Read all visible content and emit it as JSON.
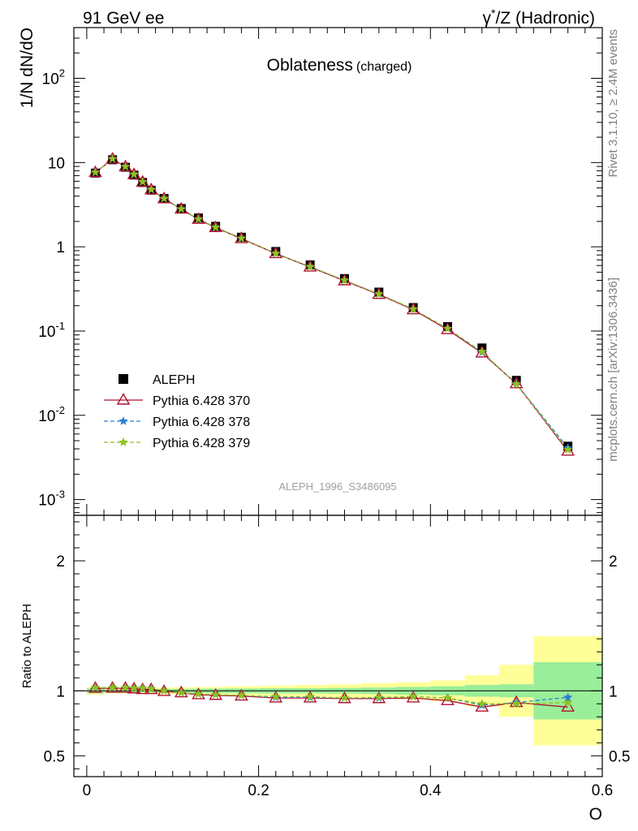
{
  "header": {
    "left": "91 GeV ee",
    "right_prefix": "γ",
    "right_sup": "*",
    "right_rest": "/Z (Hadronic)"
  },
  "side": {
    "rivet": "Rivet 3.1.10, ≥ 2.4M events",
    "mcplots": "mcplots.cern.ch [arXiv:1306.3436]"
  },
  "chart_data": {
    "type": "line",
    "title": "Oblateness",
    "subtitle": "(charged)",
    "analysis_tag": "ALEPH_1996_S3486095",
    "xlabel": "O",
    "ylabel": "1/N dN/dO",
    "ratio_ylabel": "Ratio to ALEPH",
    "xlim": [
      -0.015,
      0.6
    ],
    "ylim": [
      0.00065,
      400
    ],
    "ylog": true,
    "ratio_ylim": [
      0.34,
      2.35
    ],
    "x_ticks": [
      {
        "v": 0,
        "label": "0"
      },
      {
        "v": 0.2,
        "label": "0.2"
      },
      {
        "v": 0.4,
        "label": "0.4"
      },
      {
        "v": 0.6,
        "label": "0.6"
      }
    ],
    "y_ticks": [
      {
        "v": 0.001,
        "base": "10",
        "exp": "-3"
      },
      {
        "v": 0.01,
        "base": "10",
        "exp": "-2"
      },
      {
        "v": 0.1,
        "base": "10",
        "exp": "-1"
      },
      {
        "v": 1,
        "base": "1",
        "exp": ""
      },
      {
        "v": 10,
        "base": "10",
        "exp": ""
      },
      {
        "v": 100,
        "base": "10",
        "exp": "2"
      }
    ],
    "ratio_ticks": [
      {
        "v": 0.5,
        "label": "0.5"
      },
      {
        "v": 1,
        "label": "1"
      },
      {
        "v": 2,
        "label": "2"
      }
    ],
    "legend_position": "lower-left",
    "x": [
      0.01,
      0.03,
      0.045,
      0.055,
      0.065,
      0.075,
      0.09,
      0.11,
      0.13,
      0.15,
      0.18,
      0.22,
      0.26,
      0.3,
      0.34,
      0.38,
      0.42,
      0.46,
      0.5,
      0.56
    ],
    "bin_edges": [
      0.0,
      0.02,
      0.04,
      0.05,
      0.06,
      0.07,
      0.08,
      0.1,
      0.12,
      0.14,
      0.16,
      0.2,
      0.24,
      0.28,
      0.32,
      0.36,
      0.4,
      0.44,
      0.48,
      0.52,
      0.6
    ],
    "band_inner": [
      0.02,
      0.01,
      0.01,
      0.01,
      0.01,
      0.012,
      0.014,
      0.015,
      0.016,
      0.017,
      0.018,
      0.02,
      0.02,
      0.022,
      0.025,
      0.03,
      0.035,
      0.045,
      0.05,
      0.22
    ],
    "band_outer": [
      0.03,
      0.02,
      0.02,
      0.02,
      0.02,
      0.022,
      0.025,
      0.027,
      0.03,
      0.03,
      0.035,
      0.04,
      0.045,
      0.05,
      0.06,
      0.065,
      0.08,
      0.12,
      0.2,
      0.42
    ],
    "data": {
      "name": "ALEPH",
      "color": "#000000",
      "values": [
        7.5,
        10.8,
        8.8,
        7.1,
        5.8,
        4.7,
        3.75,
        2.85,
        2.2,
        1.75,
        1.3,
        0.88,
        0.61,
        0.42,
        0.29,
        0.19,
        0.113,
        0.063,
        0.026,
        0.0043
      ]
    },
    "series": [
      {
        "name": "Pythia 6.428 370",
        "color": "#b01030",
        "style": "solid",
        "marker": "triangle",
        "values": [
          7.6,
          11.0,
          8.9,
          7.2,
          5.85,
          4.75,
          3.72,
          2.8,
          2.12,
          1.69,
          1.25,
          0.83,
          0.575,
          0.395,
          0.272,
          0.179,
          0.104,
          0.055,
          0.0237,
          0.00375
        ],
        "ratio": [
          1.02,
          1.02,
          1.02,
          1.015,
          1.01,
          1.01,
          0.995,
          0.985,
          0.97,
          0.965,
          0.96,
          0.945,
          0.945,
          0.94,
          0.94,
          0.945,
          0.925,
          0.875,
          0.91,
          0.875
        ]
      },
      {
        "name": "Pythia 6.428 378",
        "color": "#2a7fd4",
        "style": "dashed",
        "marker": "star",
        "values": [
          7.65,
          11.05,
          8.95,
          7.25,
          5.9,
          4.78,
          3.74,
          2.81,
          2.13,
          1.7,
          1.26,
          0.835,
          0.58,
          0.4,
          0.275,
          0.182,
          0.107,
          0.056,
          0.0237,
          0.0041
        ],
        "ratio": [
          1.025,
          1.025,
          1.025,
          1.02,
          1.02,
          1.015,
          1.0,
          0.985,
          0.975,
          0.97,
          0.965,
          0.95,
          0.95,
          0.945,
          0.945,
          0.955,
          0.945,
          0.89,
          0.91,
          0.95
        ]
      },
      {
        "name": "Pythia 6.428 379",
        "color": "#8dc21f",
        "style": "dashed",
        "marker": "star",
        "values": [
          7.65,
          11.05,
          8.95,
          7.25,
          5.9,
          4.78,
          3.74,
          2.81,
          2.13,
          1.7,
          1.26,
          0.835,
          0.58,
          0.4,
          0.275,
          0.182,
          0.107,
          0.057,
          0.0234,
          0.0039
        ],
        "ratio": [
          1.025,
          1.025,
          1.025,
          1.02,
          1.02,
          1.015,
          1.0,
          0.985,
          0.975,
          0.97,
          0.965,
          0.955,
          0.955,
          0.945,
          0.95,
          0.955,
          0.945,
          0.9,
          0.9,
          0.91
        ]
      }
    ]
  }
}
